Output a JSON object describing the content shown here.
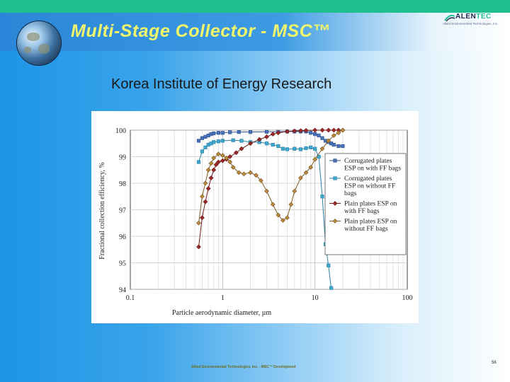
{
  "slide": {
    "title": "Multi-Stage Collector - MSC™",
    "subtitle": "Korea Institute of Energy Research",
    "footer": "Allied Environmental Technologies, Inc. - MSC™ Development",
    "page_number": "56"
  },
  "logo": {
    "name_part1": "ALEN",
    "name_part2": "TEC",
    "tagline": "Allied Environmental Technologies, Inc."
  },
  "colors": {
    "header_title": "#f2f66a",
    "series_1": "#4a72b8",
    "series_2": "#3fa8cf",
    "series_3": "#9a2a2a",
    "series_4": "#b8893e"
  },
  "chart_data": {
    "type": "line",
    "xlabel": "Particle aerodynamic diameter, µm",
    "ylabel": "Fractional collection efficiency, %",
    "x_scale": "log",
    "xlim": [
      0.1,
      100
    ],
    "ylim": [
      94,
      100
    ],
    "xticks": [
      "0.1",
      "1",
      "10",
      "100"
    ],
    "yticks": [
      "94",
      "95",
      "96",
      "97",
      "98",
      "99",
      "100"
    ],
    "grid": true,
    "legend_position": "right",
    "series": [
      {
        "name": "Corrugated plates ESP on with FF bags",
        "marker": "square",
        "points": [
          [
            0.55,
            99.6
          ],
          [
            0.6,
            99.7
          ],
          [
            0.65,
            99.75
          ],
          [
            0.7,
            99.8
          ],
          [
            0.75,
            99.85
          ],
          [
            0.8,
            99.88
          ],
          [
            0.9,
            99.9
          ],
          [
            1.0,
            99.9
          ],
          [
            1.2,
            99.92
          ],
          [
            1.5,
            99.93
          ],
          [
            2,
            99.93
          ],
          [
            3,
            99.94
          ],
          [
            4,
            99.94
          ],
          [
            5,
            99.95
          ],
          [
            6,
            99.95
          ],
          [
            7,
            99.95
          ],
          [
            8,
            99.95
          ],
          [
            9,
            99.9
          ],
          [
            10,
            99.85
          ],
          [
            11,
            99.8
          ],
          [
            12,
            99.7
          ],
          [
            13,
            99.6
          ],
          [
            14,
            99.55
          ],
          [
            15,
            99.5
          ],
          [
            16,
            99.45
          ],
          [
            18,
            99.4
          ],
          [
            20,
            99.4
          ]
        ]
      },
      {
        "name": "Corrugated plates ESP on without FF bags",
        "marker": "square",
        "points": [
          [
            0.55,
            98.8
          ],
          [
            0.6,
            99.2
          ],
          [
            0.65,
            99.35
          ],
          [
            0.7,
            99.45
          ],
          [
            0.75,
            99.5
          ],
          [
            0.8,
            99.55
          ],
          [
            0.9,
            99.58
          ],
          [
            1.0,
            99.6
          ],
          [
            1.3,
            99.62
          ],
          [
            1.6,
            99.6
          ],
          [
            2,
            99.55
          ],
          [
            2.5,
            99.55
          ],
          [
            3,
            99.5
          ],
          [
            3.5,
            99.45
          ],
          [
            4,
            99.4
          ],
          [
            4.5,
            99.3
          ],
          [
            5,
            99.28
          ],
          [
            6,
            99.3
          ],
          [
            7,
            99.28
          ],
          [
            8,
            99.32
          ],
          [
            9,
            99.35
          ],
          [
            10,
            99.3
          ],
          [
            11,
            99.0
          ],
          [
            12,
            97.5
          ],
          [
            13,
            95.7
          ],
          [
            14,
            94.9
          ],
          [
            15,
            94.05
          ]
        ]
      },
      {
        "name": "Plain plates ESP on with FF bags",
        "marker": "diamond",
        "points": [
          [
            0.55,
            95.6
          ],
          [
            0.6,
            96.7
          ],
          [
            0.65,
            97.3
          ],
          [
            0.7,
            97.8
          ],
          [
            0.75,
            98.2
          ],
          [
            0.8,
            98.5
          ],
          [
            0.85,
            98.7
          ],
          [
            0.9,
            98.8
          ],
          [
            1.0,
            98.85
          ],
          [
            1.1,
            98.9
          ],
          [
            1.2,
            99.0
          ],
          [
            1.4,
            99.15
          ],
          [
            1.6,
            99.3
          ],
          [
            2,
            99.5
          ],
          [
            2.5,
            99.65
          ],
          [
            3,
            99.75
          ],
          [
            3.5,
            99.85
          ],
          [
            4,
            99.9
          ],
          [
            5,
            99.95
          ],
          [
            6,
            99.97
          ],
          [
            7,
            99.98
          ],
          [
            8,
            99.99
          ],
          [
            10,
            100
          ],
          [
            12,
            100
          ],
          [
            14,
            100
          ],
          [
            16,
            100
          ],
          [
            18,
            100
          ],
          [
            20,
            100
          ]
        ]
      },
      {
        "name": "Plain plates ESP on without FF bags",
        "marker": "diamond",
        "points": [
          [
            0.55,
            96.5
          ],
          [
            0.6,
            97.5
          ],
          [
            0.65,
            98.0
          ],
          [
            0.7,
            98.5
          ],
          [
            0.75,
            98.75
          ],
          [
            0.8,
            98.95
          ],
          [
            0.9,
            99.1
          ],
          [
            1.0,
            99.05
          ],
          [
            1.1,
            98.95
          ],
          [
            1.2,
            98.8
          ],
          [
            1.3,
            98.6
          ],
          [
            1.5,
            98.4
          ],
          [
            1.7,
            98.35
          ],
          [
            2,
            98.4
          ],
          [
            2.3,
            98.3
          ],
          [
            2.6,
            98.1
          ],
          [
            3,
            97.7
          ],
          [
            3.5,
            97.2
          ],
          [
            4,
            96.8
          ],
          [
            4.5,
            96.6
          ],
          [
            5,
            96.7
          ],
          [
            5.5,
            97.2
          ],
          [
            6,
            97.7
          ],
          [
            7,
            98.2
          ],
          [
            8,
            98.4
          ],
          [
            9,
            98.6
          ],
          [
            10,
            98.9
          ],
          [
            12,
            99.3
          ],
          [
            14,
            99.6
          ],
          [
            16,
            99.8
          ],
          [
            18,
            99.9
          ],
          [
            20,
            100
          ]
        ]
      }
    ]
  }
}
